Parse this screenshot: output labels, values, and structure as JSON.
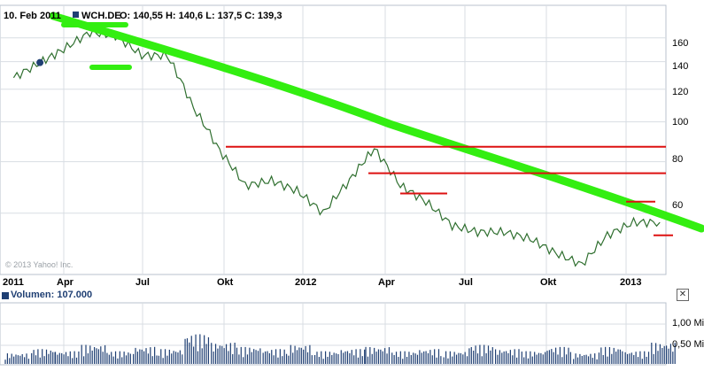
{
  "chart_data": {
    "type": "line",
    "header": {
      "date": "10. Feb 2011",
      "symbol": "WCH.DE",
      "ohlc": "O: 140,55 H: 140,6 L: 137,5 C: 139,3"
    },
    "copyright": "© 2013 Yahoo! Inc.",
    "x_tick_labels": [
      "2011",
      "Apr",
      "Jul",
      "Okt",
      "2012",
      "Apr",
      "Jul",
      "Okt",
      "2013"
    ],
    "y_tick_labels": [
      "160",
      "140",
      "120",
      "100",
      "80",
      "60"
    ],
    "y_scale": "log",
    "ylim": [
      43,
      190
    ],
    "grid": true,
    "price_series": {
      "name": "WCH.DE",
      "x": [
        "2011-01",
        "2011-02",
        "2011-03",
        "2011-04",
        "2011-05",
        "2011-06",
        "2011-07",
        "2011-08",
        "2011-09",
        "2011-10",
        "2011-11",
        "2011-12",
        "2012-01",
        "2012-02",
        "2012-03",
        "2012-04",
        "2012-05",
        "2012-06",
        "2012-07",
        "2012-08",
        "2012-09",
        "2012-10",
        "2012-11",
        "2012-12",
        "2013-01",
        "2013-02"
      ],
      "values": [
        128,
        139,
        150,
        165,
        162,
        145,
        145,
        108,
        85,
        70,
        72,
        68,
        60,
        72,
        86,
        70,
        64,
        56,
        54,
        54,
        52,
        48,
        45,
        53,
        57,
        57
      ]
    },
    "volume": {
      "title": "Volumen: 107.000",
      "y_tick_labels": [
        "1,00 Mio",
        "0,50 Mio"
      ],
      "values_mio": [
        0.25,
        0.35,
        0.3,
        0.45,
        0.3,
        0.4,
        0.35,
        0.7,
        0.5,
        0.4,
        0.35,
        0.45,
        0.3,
        0.35,
        0.4,
        0.3,
        0.35,
        0.3,
        0.45,
        0.35,
        0.3,
        0.4,
        0.25,
        0.4,
        0.3,
        0.5
      ]
    },
    "annotations": {
      "trend_line_color": "#33ee11",
      "level_line_color": "#dd1111",
      "level_values": [
        87,
        75,
        67,
        64,
        53
      ]
    }
  },
  "colors": {
    "price_line": "#2f6f2f",
    "volume_bar": "#1f3f73",
    "grid": "#d8dde3",
    "axis_text": "#1f3f73"
  }
}
